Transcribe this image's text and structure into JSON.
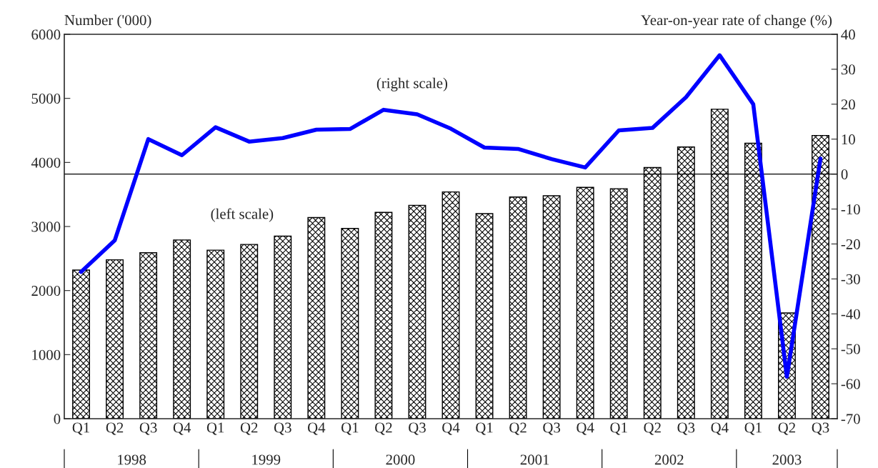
{
  "chart_data": {
    "type": "bar",
    "categories": [
      "Q1",
      "Q2",
      "Q3",
      "Q4",
      "Q1",
      "Q2",
      "Q3",
      "Q4",
      "Q1",
      "Q2",
      "Q3",
      "Q4",
      "Q1",
      "Q2",
      "Q3",
      "Q4",
      "Q1",
      "Q2",
      "Q3",
      "Q4",
      "Q1",
      "Q2",
      "Q3"
    ],
    "series": [
      {
        "color": "#000000",
        "values": [
          2320,
          2480,
          2590,
          2790,
          2630,
          2720,
          2850,
          3140,
          2970,
          3220,
          3330,
          3540,
          3200,
          3460,
          3480,
          3610,
          3590,
          3920,
          4240,
          4830,
          4300,
          1650,
          4420
        ]
      },
      {
        "type": "line",
        "axis": "y2",
        "color": "#0000ff",
        "values": [
          -28,
          -19,
          10,
          5.4,
          13.4,
          9.3,
          10.3,
          12.7,
          12.9,
          18.4,
          17.1,
          13,
          7.6,
          7.2,
          4.3,
          1.9,
          12.5,
          13.2,
          22,
          34,
          20,
          -58,
          4.4
        ]
      }
    ],
    "ylabel": "Number ('000)",
    "y2label": "Year-on-year rate of change (%)",
    "ylim": [
      0,
      6000
    ],
    "yticks": [
      0,
      1000,
      2000,
      3000,
      4000,
      5000,
      6000
    ],
    "y2lim": [
      -70,
      40
    ],
    "y2ticks": [
      -70,
      -60,
      -50,
      -40,
      -30,
      -20,
      -10,
      0,
      10,
      20,
      30,
      40
    ],
    "ref_lines": [
      {
        "axis": "y2",
        "value": 0,
        "color": "#000000"
      }
    ],
    "annotations": [
      "(right scale)",
      "(left scale)",
      "1998",
      "1999",
      "2000",
      "2001",
      "2002",
      "2003"
    ],
    "grid": false,
    "legend": false
  }
}
